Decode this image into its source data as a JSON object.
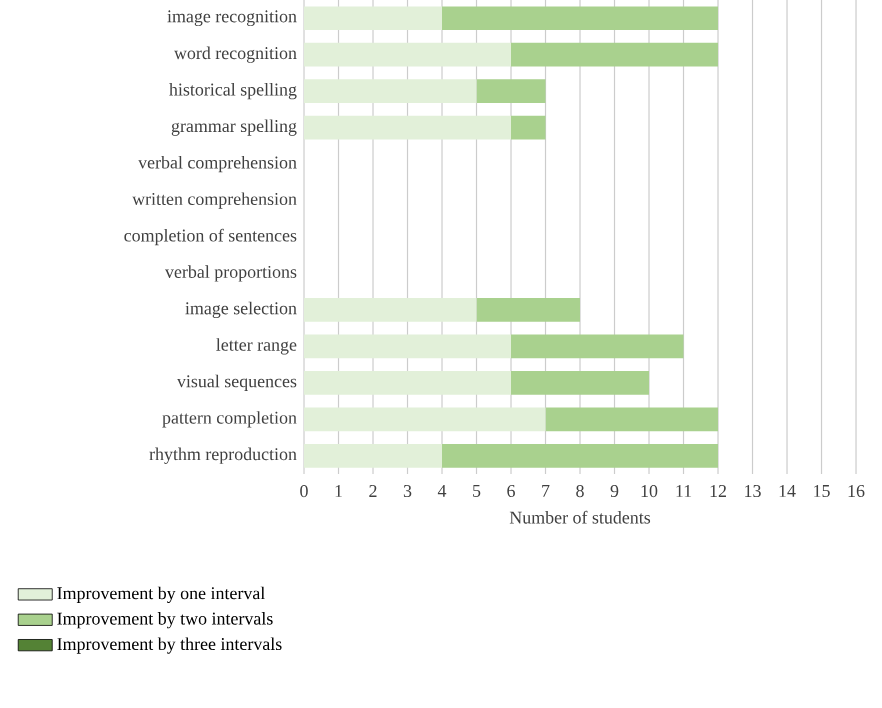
{
  "chart_data": {
    "type": "bar",
    "orientation": "horizontal",
    "stacked": true,
    "categories": [
      "image recognition",
      "word recognition",
      "historical spelling",
      "grammar spelling",
      "verbal comprehension",
      "written comprehension",
      "completion of sentences",
      "verbal proportions",
      "image selection",
      "letter range",
      "visual sequences",
      "pattern completion",
      "rhythm reproduction"
    ],
    "series": [
      {
        "name": "Improvement by one interval",
        "color": "#e2f0d9",
        "values": [
          4,
          6,
          5,
          6,
          0,
          0,
          0,
          0,
          5,
          6,
          6,
          7,
          4
        ]
      },
      {
        "name": "Improvement by two intervals",
        "color": "#a9d18e",
        "values": [
          8,
          6,
          2,
          1,
          0,
          0,
          0,
          0,
          3,
          5,
          4,
          5,
          8
        ]
      },
      {
        "name": "Improvement by three intervals",
        "color": "#548235",
        "values": [
          0,
          0,
          0,
          0,
          0,
          0,
          0,
          0,
          0,
          0,
          0,
          0,
          0
        ]
      }
    ],
    "xlabel": "Number of students",
    "xlim": [
      0,
      16
    ],
    "xticks": [
      0,
      1,
      2,
      3,
      4,
      5,
      6,
      7,
      8,
      9,
      10,
      11,
      12,
      13,
      14,
      15,
      16
    ],
    "grid": "x",
    "legend": "bottom"
  }
}
